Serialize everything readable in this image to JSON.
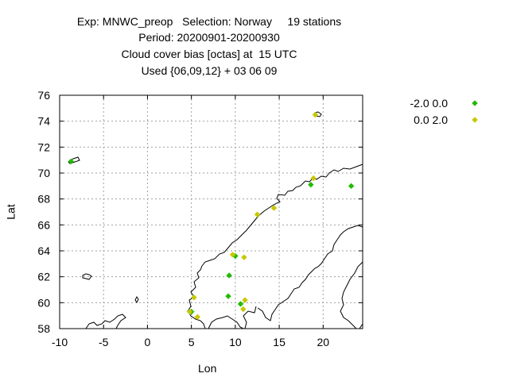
{
  "titles": [
    "Exp: MNWC_preop   Selection: Norway     19 stations",
    "Period: 20200901-20200930",
    "Cloud cover bias [octas] at  15 UTC",
    "Used {06,09,12} + 03 06 09"
  ],
  "colors": {
    "green": "#22bb00",
    "yellow": "#c8c800",
    "grid": "#a0a0a0",
    "axis": "#000000"
  },
  "chart_data": {
    "type": "scatter",
    "xlabel": "Lon",
    "ylabel": "Lat",
    "xlim": [
      -10,
      24.5
    ],
    "ylim": [
      58,
      76
    ],
    "xticks": [
      -10,
      -5,
      0,
      5,
      10,
      15,
      20
    ],
    "yticks": [
      58,
      60,
      62,
      64,
      66,
      68,
      70,
      72,
      74,
      76
    ],
    "grid": true,
    "legend_position": "top-right",
    "series": [
      {
        "name": "-2.0 0.0",
        "color": "#22bb00",
        "points": [
          [
            -8.7,
            70.9
          ],
          [
            18.6,
            69.1
          ],
          [
            23.2,
            69.0
          ],
          [
            9.3,
            62.1
          ],
          [
            9.2,
            60.5
          ],
          [
            5.0,
            59.3
          ],
          [
            10.6,
            59.9
          ],
          [
            10.0,
            63.6
          ]
        ]
      },
      {
        "name": "0.0 2.0",
        "color": "#c8c800",
        "points": [
          [
            19.1,
            74.5
          ],
          [
            18.9,
            69.6
          ],
          [
            14.4,
            67.3
          ],
          [
            12.5,
            66.8
          ],
          [
            9.7,
            63.7
          ],
          [
            11.0,
            63.5
          ],
          [
            11.1,
            60.2
          ],
          [
            5.3,
            60.4
          ],
          [
            4.8,
            59.3
          ],
          [
            5.7,
            58.9
          ],
          [
            10.9,
            59.5
          ]
        ]
      }
    ]
  }
}
